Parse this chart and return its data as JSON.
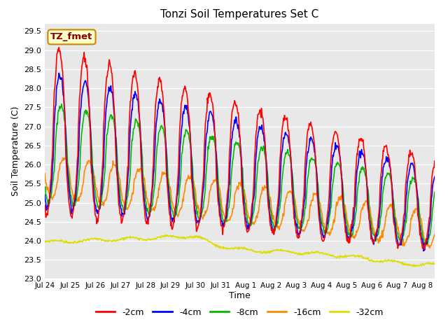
{
  "title": "Tonzi Soil Temperatures Set C",
  "xlabel": "Time",
  "ylabel": "Soil Temperature (C)",
  "ylim": [
    23.0,
    29.7
  ],
  "yticks": [
    23.0,
    23.5,
    24.0,
    24.5,
    25.0,
    25.5,
    26.0,
    26.5,
    27.0,
    27.5,
    28.0,
    28.5,
    29.0,
    29.5
  ],
  "line_colors": {
    "-2cm": "#ff0000",
    "-4cm": "#0000ff",
    "-8cm": "#00bb00",
    "-16cm": "#ff8800",
    "-32cm": "#dddd00"
  },
  "legend_label": "TZ_fmet",
  "legend_bg": "#ffffcc",
  "legend_border": "#cc8800",
  "legend_text_color": "#880000",
  "n_days": 15.5
}
